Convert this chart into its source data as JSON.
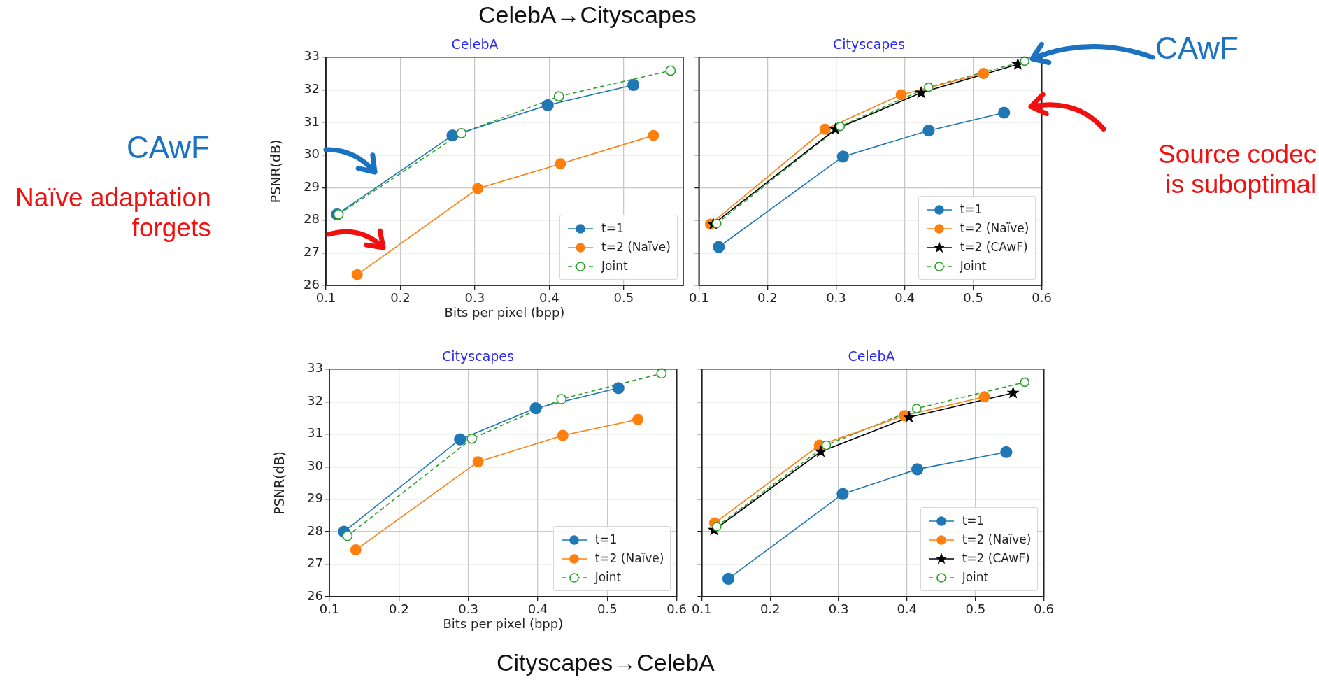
{
  "chart_data": [
    {
      "type": "line",
      "title": "CelebA",
      "ylabel": "PSNR(dB)",
      "xlabel": "Bits per pixel (bpp)",
      "annotations": [
        "CelebA→Cityscapes",
        "CAwF",
        "Naïve adaptation forgets"
      ],
      "xlim": [
        0.1,
        0.58
      ],
      "xticks": [
        0.1,
        0.2,
        0.3,
        0.4,
        0.5
      ],
      "ylim": [
        26,
        33
      ],
      "yticks": [
        26,
        27,
        28,
        29,
        30,
        31,
        32,
        33
      ],
      "grid": true,
      "legend": "bottom right",
      "series": [
        {
          "name": "t=1",
          "color": "#1f77b4",
          "marker": "circle",
          "line_style": "solid",
          "x": [
            0.115,
            0.27,
            0.398,
            0.513
          ],
          "values": [
            28.18,
            30.6,
            31.53,
            32.15
          ]
        },
        {
          "name": "t=2 (Naïve)",
          "color": "#ff7f0e",
          "marker": "circle",
          "line_style": "solid",
          "x": [
            0.142,
            0.304,
            0.415,
            0.54
          ],
          "values": [
            26.33,
            28.97,
            29.73,
            30.6
          ]
        },
        {
          "name": "Joint",
          "color": "#2ca02c",
          "marker": "circle",
          "line_style": "dashed",
          "x": [
            0.117,
            0.282,
            0.413,
            0.563
          ],
          "values": [
            28.18,
            30.67,
            31.8,
            32.59
          ]
        }
      ]
    },
    {
      "type": "line",
      "title": "Cityscapes",
      "annotations": [
        "CAwF",
        "Source codec is suboptimal"
      ],
      "xlim": [
        0.1,
        0.6
      ],
      "xticks": [
        0.1,
        0.2,
        0.3,
        0.4,
        0.5,
        0.6
      ],
      "ylim": [
        26,
        33
      ],
      "yticks": [
        26,
        27,
        28,
        29,
        30,
        31,
        32,
        33
      ],
      "grid": true,
      "legend": "bottom right",
      "tick_labels": "x",
      "series": [
        {
          "name": "t=1",
          "color": "#1f77b4",
          "marker": "circle",
          "line_style": "solid",
          "x": [
            0.129,
            0.31,
            0.435,
            0.545
          ],
          "values": [
            27.18,
            29.95,
            30.75,
            31.3
          ]
        },
        {
          "name": "t=2 (Naïve)",
          "color": "#ff7f0e",
          "marker": "circle",
          "line_style": "solid",
          "x": [
            0.117,
            0.284,
            0.395,
            0.515
          ],
          "values": [
            27.88,
            30.79,
            31.85,
            32.5
          ]
        },
        {
          "name": "t=2 (CAwF)",
          "color": "#000000",
          "marker": "star",
          "line_style": "solid",
          "x": [
            0.121,
            0.299,
            0.424,
            0.565
          ],
          "values": [
            27.88,
            30.79,
            31.91,
            32.78
          ]
        },
        {
          "name": "Joint",
          "color": "#2ca02c",
          "marker": "circle",
          "line_style": "dashed",
          "x": [
            0.126,
            0.306,
            0.435,
            0.575
          ],
          "values": [
            27.9,
            30.88,
            32.08,
            32.88
          ]
        }
      ]
    },
    {
      "type": "line",
      "title": "Cityscapes",
      "ylabel": "PSNR(dB)",
      "xlabel": "Bits per pixel (bpp)",
      "annotations": [
        "Cityscapes→CelebA"
      ],
      "xlim": [
        0.1,
        0.6
      ],
      "xticks": [
        0.1,
        0.2,
        0.3,
        0.4,
        0.5,
        0.6
      ],
      "ylim": [
        26,
        33
      ],
      "yticks": [
        26,
        27,
        28,
        29,
        30,
        31,
        32,
        33
      ],
      "grid": true,
      "legend": "bottom right",
      "series": [
        {
          "name": "t=1",
          "color": "#1f77b4",
          "marker": "circle",
          "line_style": "solid",
          "x": [
            0.121,
            0.288,
            0.397,
            0.516
          ],
          "values": [
            28.0,
            30.84,
            31.8,
            32.42
          ]
        },
        {
          "name": "t=2 (Naïve)",
          "color": "#ff7f0e",
          "marker": "circle",
          "line_style": "solid",
          "x": [
            0.138,
            0.314,
            0.436,
            0.544
          ],
          "values": [
            27.44,
            30.15,
            30.96,
            31.45
          ]
        },
        {
          "name": "Joint",
          "color": "#2ca02c",
          "marker": "circle",
          "line_style": "dashed",
          "x": [
            0.126,
            0.305,
            0.434,
            0.578
          ],
          "values": [
            27.87,
            30.86,
            32.08,
            32.87
          ]
        }
      ]
    },
    {
      "type": "line",
      "title": "CelebA",
      "xlim": [
        0.1,
        0.6
      ],
      "xticks": [
        0.1,
        0.2,
        0.3,
        0.4,
        0.5,
        0.6
      ],
      "ylim": [
        26,
        33
      ],
      "yticks": [
        26,
        27,
        28,
        29,
        30,
        31,
        32,
        33
      ],
      "grid": true,
      "legend": "bottom right",
      "tick_labels": "x",
      "series": [
        {
          "name": "t=1",
          "color": "#1f77b4",
          "marker": "circle",
          "line_style": "solid",
          "x": [
            0.139,
            0.306,
            0.415,
            0.545
          ],
          "values": [
            26.55,
            29.16,
            29.92,
            30.45
          ]
        },
        {
          "name": "t=2 (Naïve)",
          "color": "#ff7f0e",
          "marker": "circle",
          "line_style": "solid",
          "x": [
            0.119,
            0.272,
            0.396,
            0.513
          ],
          "values": [
            28.27,
            30.66,
            31.57,
            32.15
          ]
        },
        {
          "name": "t=2 (CAwF)",
          "color": "#000000",
          "marker": "star",
          "line_style": "solid",
          "x": [
            0.118,
            0.274,
            0.403,
            0.555
          ],
          "values": [
            28.05,
            30.46,
            31.52,
            32.27
          ]
        },
        {
          "name": "Joint",
          "color": "#2ca02c",
          "marker": "circle",
          "line_style": "dashed",
          "x": [
            0.122,
            0.282,
            0.414,
            0.572
          ],
          "values": [
            28.16,
            30.66,
            31.79,
            32.6
          ]
        }
      ]
    }
  ]
}
